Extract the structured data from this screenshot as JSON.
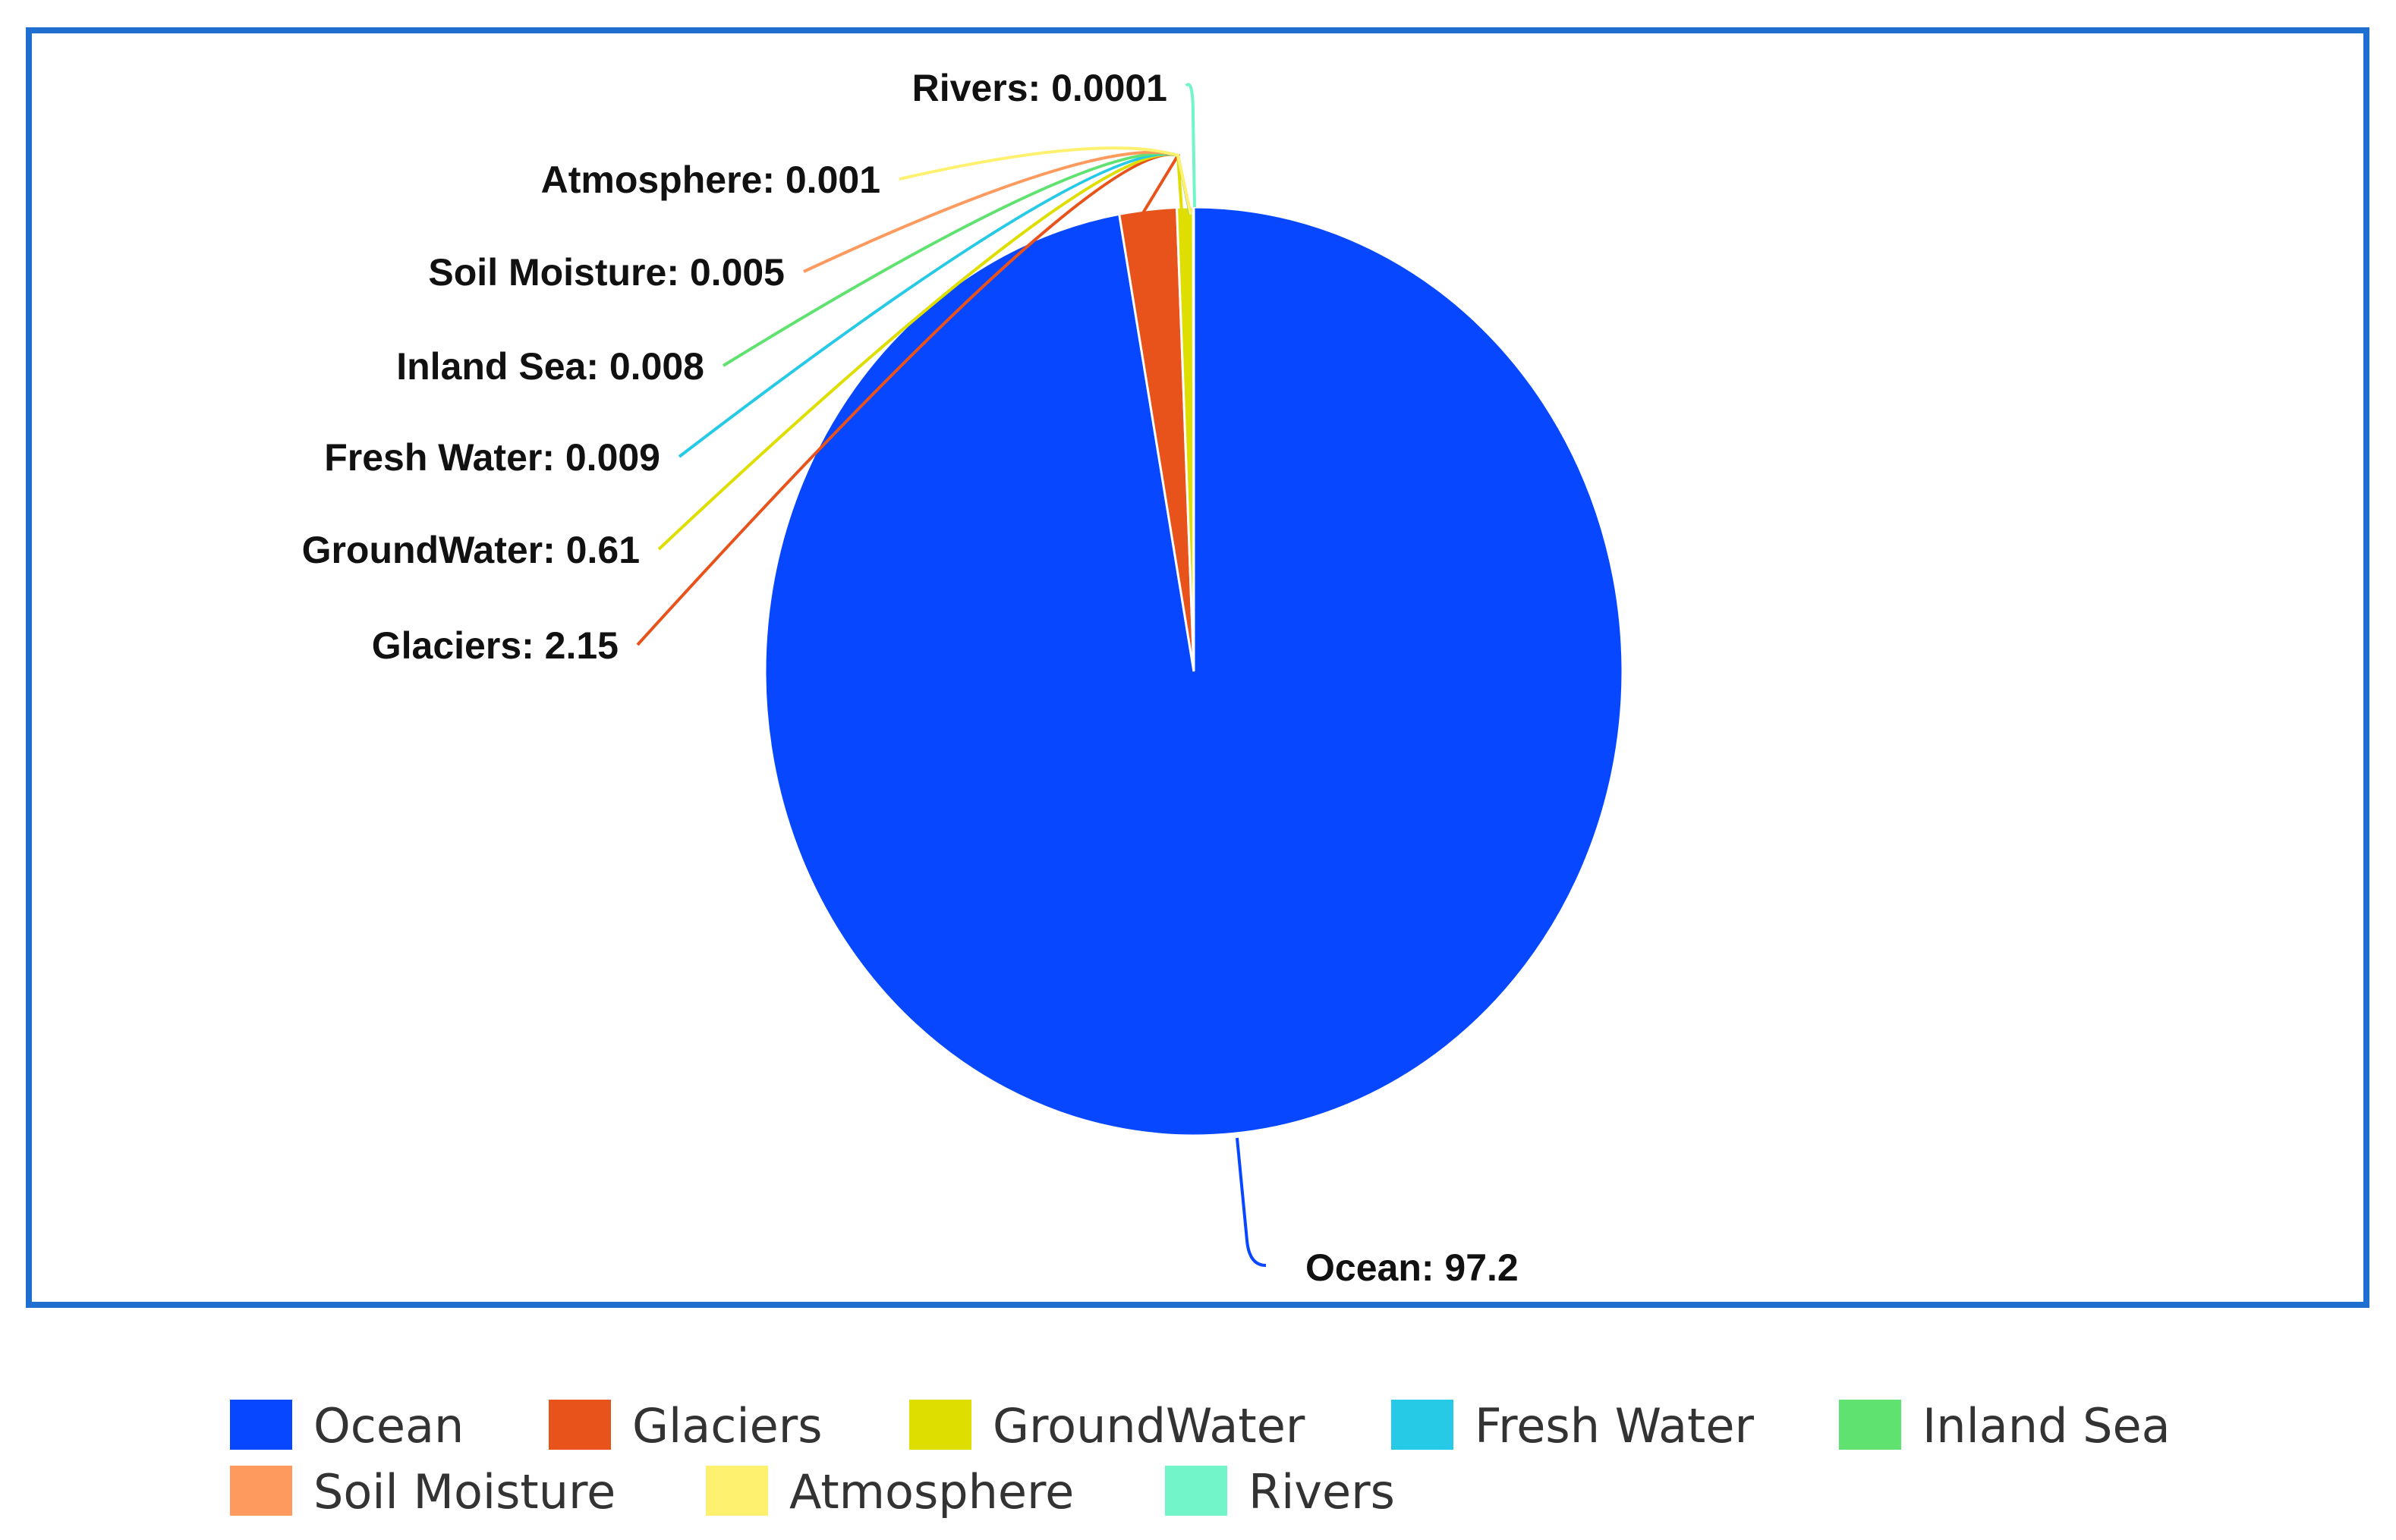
{
  "chart_data": {
    "type": "pie",
    "title": "",
    "slices": [
      {
        "name": "Ocean",
        "value": 97.2,
        "label": "Ocean: 97.2",
        "color": "#0747ff"
      },
      {
        "name": "Glaciers",
        "value": 2.15,
        "label": "Glaciers: 2.15",
        "color": "#e8531c"
      },
      {
        "name": "GroundWater",
        "value": 0.61,
        "label": "GroundWater: 0.61",
        "color": "#dede00"
      },
      {
        "name": "Fresh Water",
        "value": 0.009,
        "label": "Fresh Water: 0.009",
        "color": "#26c9e6"
      },
      {
        "name": "Inland Sea",
        "value": 0.008,
        "label": "Inland Sea: 0.008",
        "color": "#5fe26f"
      },
      {
        "name": "Soil Moisture",
        "value": 0.005,
        "label": "Soil Moisture: 0.005",
        "color": "#ff9a5e"
      },
      {
        "name": "Atmosphere",
        "value": 0.001,
        "label": "Atmosphere: 0.001",
        "color": "#fff170"
      },
      {
        "name": "Rivers",
        "value": 0.0001,
        "label": "Rivers: 0.0001",
        "color": "#72f5c8"
      }
    ],
    "legend_position": "bottom"
  }
}
